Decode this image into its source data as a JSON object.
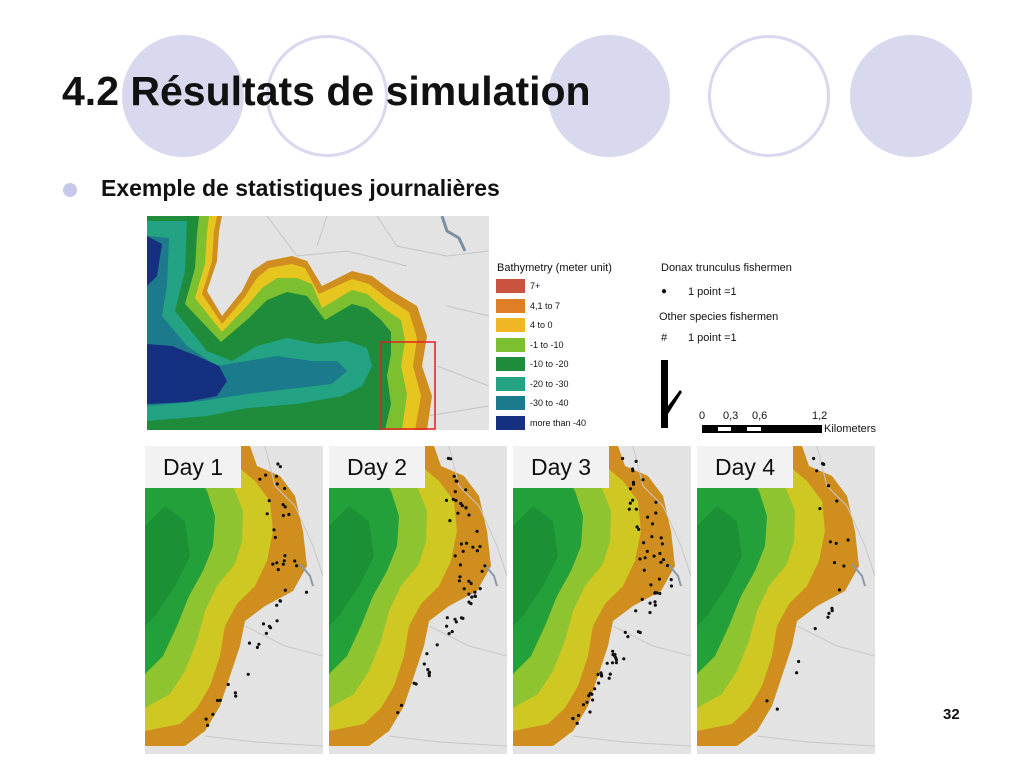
{
  "slide": {
    "title": "4.2 Résultats de simulation",
    "bullet": "Exemple de statistiques journalières",
    "page_number": "32"
  },
  "bathymetry_legend": {
    "title": "Bathymetry (meter unit)",
    "items": [
      {
        "label": "7+",
        "color": "#c8533f"
      },
      {
        "label": "4,1 to 7",
        "color": "#df7f25"
      },
      {
        "label": "4 to 0",
        "color": "#f0b624"
      },
      {
        "label": "-1 to -10",
        "color": "#7cbf2f"
      },
      {
        "label": "-10 to -20",
        "color": "#1e8c3b"
      },
      {
        "label": "-20 to -30",
        "color": "#23a384"
      },
      {
        "label": "-30 to -40",
        "color": "#1b7b8c"
      },
      {
        "label": "more than -40",
        "color": "#153080"
      }
    ]
  },
  "fishermen_legend": {
    "donax_title": "Donax trunculus fishermen",
    "donax_symbol": "●",
    "donax_text": "1 point =1",
    "other_title": "Other species fishermen",
    "other_symbol": "#",
    "other_text": "1 point =1"
  },
  "scale_bar": {
    "ticks": [
      "0",
      "0,3",
      "0,6",
      "1,2"
    ],
    "unit": "Kilometers"
  },
  "days": [
    "Day 1",
    "Day 2",
    "Day 3",
    "Day 4"
  ],
  "colors": {
    "accent": "#d8d8ee",
    "land": "#e3e3e3",
    "shallow_orange": "#cf8e1e",
    "yellow_band": "#cfc722",
    "green_water": "#24a03a",
    "highlight_box": "#dd2222"
  }
}
